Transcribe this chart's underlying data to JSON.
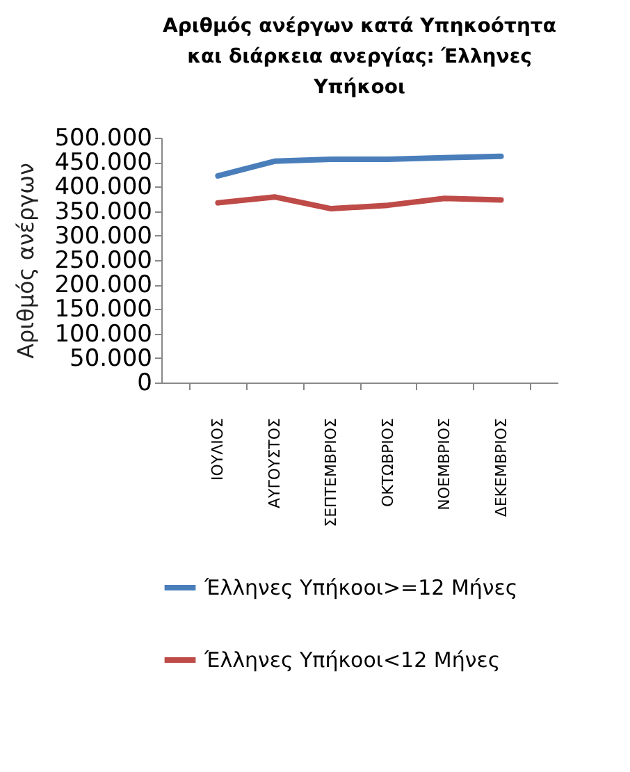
{
  "chart_data": {
    "type": "line",
    "title": "Αριθμός ανέργων κατά Υπηκοότητα και διάρκεια ανεργίας: Έλληνες Υπήκοοι",
    "ylabel": "Αριθμός ανέργων",
    "categories": [
      "ΙΟΥΛΙΟΣ",
      "ΑΥΓΟΥΣΤΟΣ",
      "ΣΕΠΤΕΜΒΡΙΟΣ",
      "ΟΚΤΩΒΡΙΟΣ",
      "ΝΟΕΜΒΡΙΟΣ",
      "ΔΕΚΕΜΒΡΙΟΣ"
    ],
    "series": [
      {
        "name": "Έλληνες Υπήκοοι>=12 Μήνες",
        "color": "#4a7ebb",
        "values": [
          422000,
          452000,
          456000,
          456000,
          459000,
          462000
        ]
      },
      {
        "name": "Έλληνες Υπήκοοι<12 Μήνες",
        "color": "#be4b48",
        "values": [
          367000,
          379000,
          355000,
          362000,
          376000,
          373000
        ]
      }
    ],
    "ylim": [
      0,
      500000
    ],
    "yticks": [
      {
        "value": 0,
        "label": "0"
      },
      {
        "value": 50000,
        "label": "50.000"
      },
      {
        "value": 100000,
        "label": "100.000"
      },
      {
        "value": 150000,
        "label": "150.000"
      },
      {
        "value": 200000,
        "label": "200.000"
      },
      {
        "value": 250000,
        "label": "250.000"
      },
      {
        "value": 300000,
        "label": "300.000"
      },
      {
        "value": 350000,
        "label": "350.000"
      },
      {
        "value": 400000,
        "label": "400.000"
      },
      {
        "value": 450000,
        "label": "450.000"
      },
      {
        "value": 500000,
        "label": "500.000"
      }
    ],
    "grid": false,
    "legend": "bottom",
    "marker": "none",
    "line_style": "solid"
  }
}
